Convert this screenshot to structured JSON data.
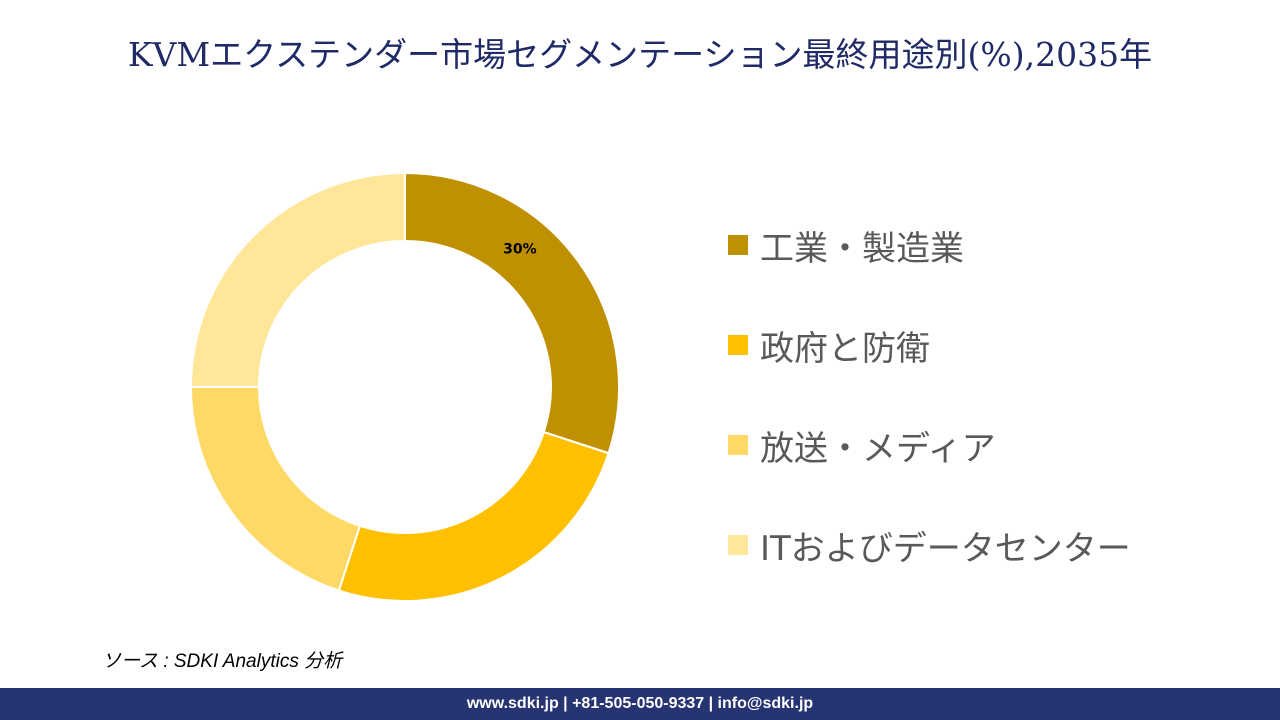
{
  "title": "KVMエクステンダー市場セグメンテーション最終用途別(%),2035年",
  "chart_data": {
    "type": "donut",
    "title": "KVMエクステンダー市場セグメンテーション最終用途別(%),2035年",
    "categories": [
      "工業・製造業",
      "政府と防衛",
      "放送・メディア",
      "ITおよびデータセンター"
    ],
    "values": [
      30,
      25,
      20,
      25
    ],
    "colors": [
      "#BF9000",
      "#FFC000",
      "#FFD966",
      "#FFE699"
    ],
    "data_labels": [
      "30%",
      "",
      "",
      ""
    ],
    "legend_position": "right",
    "unit": "%"
  },
  "source": "ソース : SDKI Analytics 分析",
  "footer": "www.sdki.jp | +81-505-050-9337 | info@sdki.jp"
}
